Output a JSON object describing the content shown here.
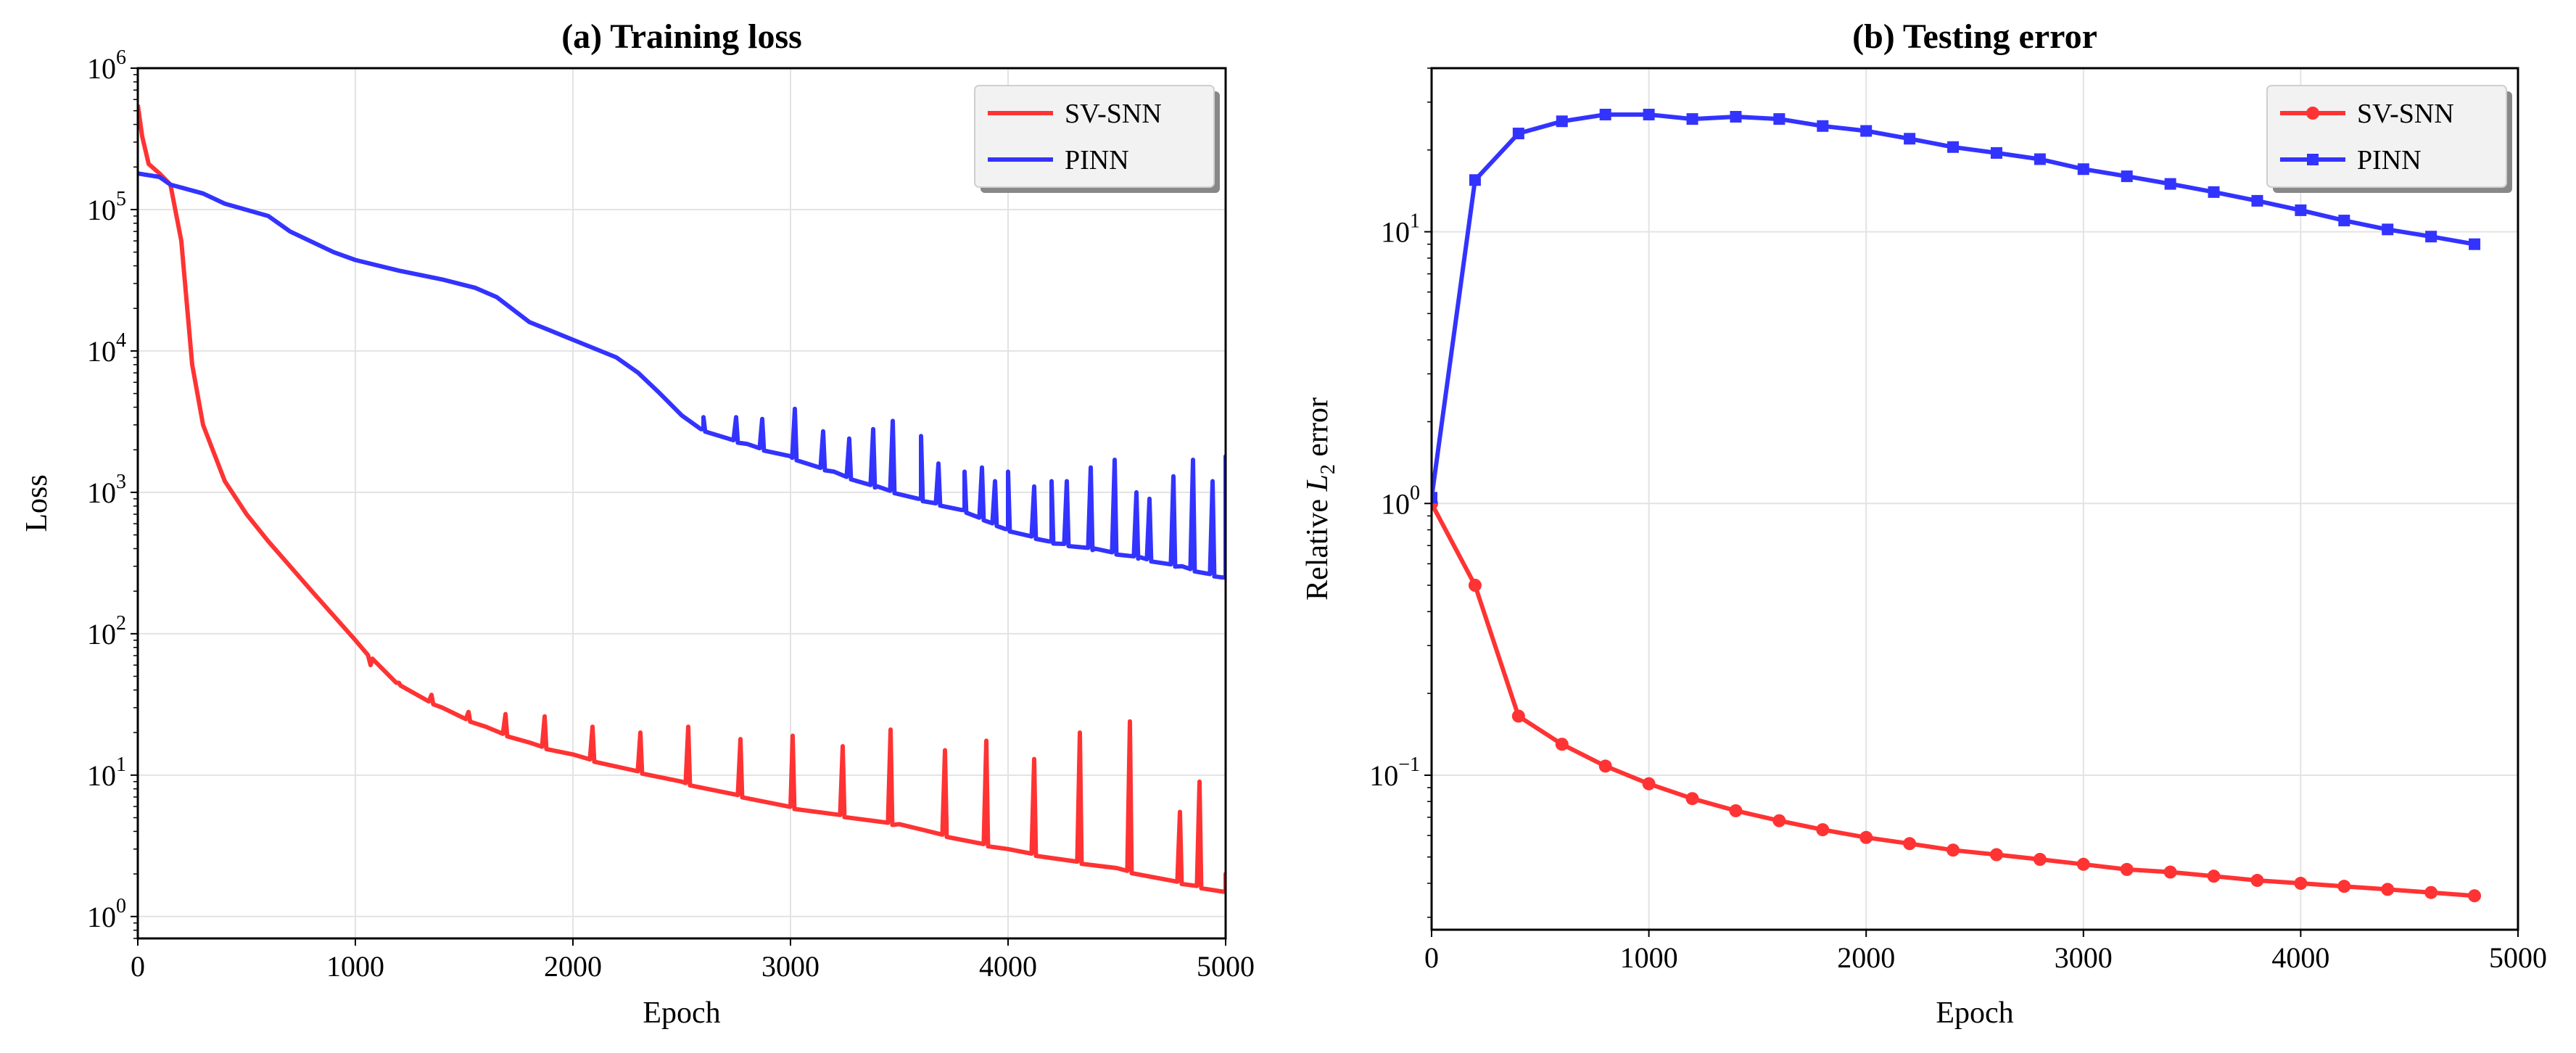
{
  "colors": {
    "sv_snn": "#ff3333",
    "pinn": "#3333ff",
    "grid": "#e3e3e3",
    "legend_bg": "#f2f2f2"
  },
  "chart_data": [
    {
      "type": "line",
      "title": "(a) Training loss",
      "xlabel": "Epoch",
      "ylabel": "Loss",
      "xlim": [
        0,
        5000
      ],
      "ylim": [
        0.7,
        1000000
      ],
      "yscale": "log",
      "grid": true,
      "legend_position": "top-right",
      "x_ticks": [
        "0",
        "1000",
        "2000",
        "3000",
        "4000",
        "5000"
      ],
      "y_ticks": [
        {
          "base": "10",
          "exp": "0"
        },
        {
          "base": "10",
          "exp": "1"
        },
        {
          "base": "10",
          "exp": "2"
        },
        {
          "base": "10",
          "exp": "3"
        },
        {
          "base": "10",
          "exp": "4"
        },
        {
          "base": "10",
          "exp": "5"
        },
        {
          "base": "10",
          "exp": "6"
        }
      ],
      "series": [
        {
          "name": "SV-SNN",
          "color": "#ff3333",
          "points": [
            [
              0,
              550000
            ],
            [
              20,
              330000
            ],
            [
              50,
              210000
            ],
            [
              100,
              180000
            ],
            [
              150,
              150000
            ],
            [
              200,
              60000
            ],
            [
              250,
              8000
            ],
            [
              300,
              3000
            ],
            [
              400,
              1200
            ],
            [
              500,
              700
            ],
            [
              600,
              450
            ],
            [
              800,
              200
            ],
            [
              1000,
              90
            ],
            [
              1200,
              45
            ],
            [
              1400,
              30
            ],
            [
              1600,
              22
            ],
            [
              1800,
              17
            ],
            [
              2000,
              14
            ],
            [
              2500,
              9
            ],
            [
              3000,
              6
            ],
            [
              3500,
              4.5
            ],
            [
              4000,
              3
            ],
            [
              4500,
              2.2
            ],
            [
              5000,
              1.5
            ]
          ],
          "spikes": [
            [
              1070,
              60
            ],
            [
              1200,
              45
            ],
            [
              1350,
              37
            ],
            [
              1520,
              28
            ],
            [
              1690,
              27
            ],
            [
              1870,
              26
            ],
            [
              2090,
              22
            ],
            [
              2310,
              20
            ],
            [
              2530,
              22
            ],
            [
              2770,
              18
            ],
            [
              3010,
              19
            ],
            [
              3240,
              16
            ],
            [
              3460,
              21
            ],
            [
              3710,
              15
            ],
            [
              3900,
              17.5
            ],
            [
              4120,
              13
            ],
            [
              4330,
              20
            ],
            [
              4560,
              24
            ],
            [
              4790,
              5.5
            ],
            [
              4880,
              9
            ],
            [
              5000,
              2
            ]
          ]
        },
        {
          "name": "PINN",
          "color": "#3333ff",
          "points": [
            [
              0,
              180000
            ],
            [
              100,
              170000
            ],
            [
              150,
              150000
            ],
            [
              300,
              130000
            ],
            [
              400,
              110000
            ],
            [
              600,
              90000
            ],
            [
              700,
              70000
            ],
            [
              900,
              50000
            ],
            [
              1000,
              44000
            ],
            [
              1200,
              37000
            ],
            [
              1400,
              32000
            ],
            [
              1550,
              28000
            ],
            [
              1650,
              24000
            ],
            [
              1800,
              16000
            ],
            [
              2000,
              12000
            ],
            [
              2200,
              9000
            ],
            [
              2300,
              7000
            ],
            [
              2400,
              5000
            ],
            [
              2500,
              3500
            ],
            [
              2600,
              2800
            ],
            [
              2800,
              2200
            ],
            [
              3000,
              1800
            ],
            [
              3200,
              1400
            ],
            [
              3400,
              1100
            ],
            [
              3600,
              900
            ],
            [
              3800,
              750
            ],
            [
              4000,
              550
            ],
            [
              4200,
              450
            ],
            [
              4400,
              400
            ],
            [
              4600,
              350
            ],
            [
              4800,
              300
            ],
            [
              5000,
              250
            ]
          ],
          "spikes": [
            [
              2600,
              3400
            ],
            [
              2750,
              3400
            ],
            [
              2870,
              3300
            ],
            [
              3020,
              3900
            ],
            [
              3150,
              2700
            ],
            [
              3270,
              2400
            ],
            [
              3380,
              2800
            ],
            [
              3470,
              3200
            ],
            [
              3600,
              2500
            ],
            [
              3680,
              1600
            ],
            [
              3800,
              1400
            ],
            [
              3880,
              1500
            ],
            [
              3940,
              1200
            ],
            [
              4000,
              1400
            ],
            [
              4120,
              1100
            ],
            [
              4200,
              1200
            ],
            [
              4270,
              1200
            ],
            [
              4380,
              1500
            ],
            [
              4490,
              1700
            ],
            [
              4590,
              1000
            ],
            [
              4650,
              900
            ],
            [
              4760,
              1300
            ],
            [
              4850,
              1700
            ],
            [
              4940,
              1200
            ],
            [
              5000,
              1800
            ]
          ]
        }
      ]
    },
    {
      "type": "line",
      "title": "(b) Testing error",
      "xlabel": "Epoch",
      "ylabel_prefix": "Relative ",
      "ylabel_symbol": "L",
      "ylabel_subscript": "2",
      "ylabel_suffix": " error",
      "xlim": [
        0,
        5000
      ],
      "ylim": [
        0.027,
        40
      ],
      "yscale": "log",
      "grid": true,
      "legend_position": "top-right",
      "x_ticks": [
        "0",
        "1000",
        "2000",
        "3000",
        "4000",
        "5000"
      ],
      "y_ticks": [
        {
          "base": "10",
          "exp": "−1"
        },
        {
          "base": "10",
          "exp": "0"
        },
        {
          "base": "10",
          "exp": "1"
        }
      ],
      "series": [
        {
          "name": "SV-SNN",
          "color": "#ff3333",
          "marker": "circle",
          "x": [
            0,
            200,
            400,
            600,
            800,
            1000,
            1200,
            1400,
            1600,
            1800,
            2000,
            2200,
            2400,
            2600,
            2800,
            3000,
            3200,
            3400,
            3600,
            3800,
            4000,
            4200,
            4400,
            4600,
            4800
          ],
          "y": [
            1.0,
            0.5,
            0.165,
            0.13,
            0.108,
            0.093,
            0.082,
            0.074,
            0.068,
            0.063,
            0.059,
            0.056,
            0.053,
            0.051,
            0.049,
            0.047,
            0.045,
            0.044,
            0.0425,
            0.041,
            0.04,
            0.039,
            0.038,
            0.037,
            0.036
          ]
        },
        {
          "name": "PINN",
          "color": "#3333ff",
          "marker": "square",
          "x": [
            0,
            200,
            400,
            600,
            800,
            1000,
            1200,
            1400,
            1600,
            1800,
            2000,
            2200,
            2400,
            2600,
            2800,
            3000,
            3200,
            3400,
            3600,
            3800,
            4000,
            4200,
            4400,
            4600,
            4800
          ],
          "y": [
            1.05,
            15.5,
            23,
            25.5,
            27,
            27,
            26,
            26.5,
            26,
            24.5,
            23.5,
            22,
            20.5,
            19.5,
            18.5,
            17,
            16,
            15,
            14,
            13,
            12,
            11,
            10.2,
            9.6,
            9.0
          ]
        }
      ]
    }
  ]
}
